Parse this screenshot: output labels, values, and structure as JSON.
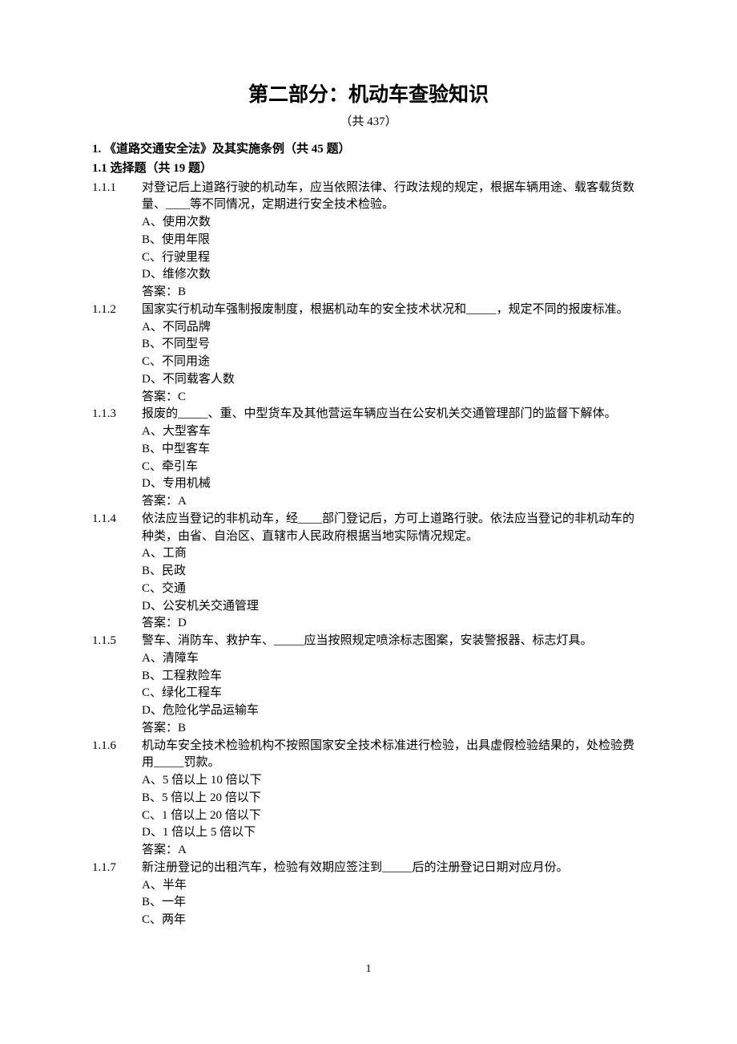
{
  "title": "第二部分：机动车查验知识",
  "subtitle": "（共 437）",
  "section": {
    "num": "1.",
    "name": "《道路交通安全法》及其实施条例（共 45 题）"
  },
  "subsection": {
    "num": "1.1",
    "name": "选择题（共 19 题）"
  },
  "answer_prefix": "答案：",
  "questions": [
    {
      "num": "1.1.1",
      "stem": "对登记后上道路行驶的机动车，应当依照法律、行政法规的规定，根据车辆用途、载客载货数量、____等不同情况，定期进行安全技术检验。",
      "options": [
        "A、使用次数",
        "B、使用年限",
        "C、行驶里程",
        "D、维修次数"
      ],
      "answer": "B"
    },
    {
      "num": "1.1.2",
      "stem": "国家实行机动车强制报废制度，根据机动车的安全技术状况和_____，规定不同的报废标准。",
      "options": [
        "A、不同品牌",
        "B、不同型号",
        "C、不同用途",
        "D、不同载客人数"
      ],
      "answer": "C"
    },
    {
      "num": "1.1.3",
      "stem": "报废的_____、重、中型货车及其他营运车辆应当在公安机关交通管理部门的监督下解体。",
      "options": [
        "A、大型客车",
        "B、中型客车",
        "C、牵引车",
        "D、专用机械"
      ],
      "answer": "A"
    },
    {
      "num": "1.1.4",
      "stem": "依法应当登记的非机动车，经____部门登记后，方可上道路行驶。依法应当登记的非机动车的种类，由省、自治区、直辖市人民政府根据当地实际情况规定。",
      "options": [
        "A、工商",
        "B、民政",
        "C、交通",
        "D、公安机关交通管理"
      ],
      "answer": "D"
    },
    {
      "num": "1.1.5",
      "stem": "警车、消防车、救护车、_____应当按照规定喷涂标志图案，安装警报器、标志灯具。",
      "options": [
        "A、清障车",
        "B、工程救险车",
        "C、绿化工程车",
        "D、危险化学品运输车"
      ],
      "answer": "B"
    },
    {
      "num": "1.1.6",
      "stem": "机动车安全技术检验机构不按照国家安全技术标准进行检验，出具虚假检验结果的，处检验费用_____罚款。",
      "options": [
        "A、5 倍以上 10 倍以下",
        "B、5 倍以上 20 倍以下",
        "C、1 倍以上 20 倍以下",
        "D、1 倍以上 5 倍以下"
      ],
      "answer": "A"
    },
    {
      "num": "1.1.7",
      "stem": "新注册登记的出租汽车，检验有效期应签注到_____后的注册登记日期对应月份。",
      "options": [
        "A、半年",
        "B、一年",
        "C、两年"
      ],
      "answer": null
    }
  ],
  "page_number": "1"
}
